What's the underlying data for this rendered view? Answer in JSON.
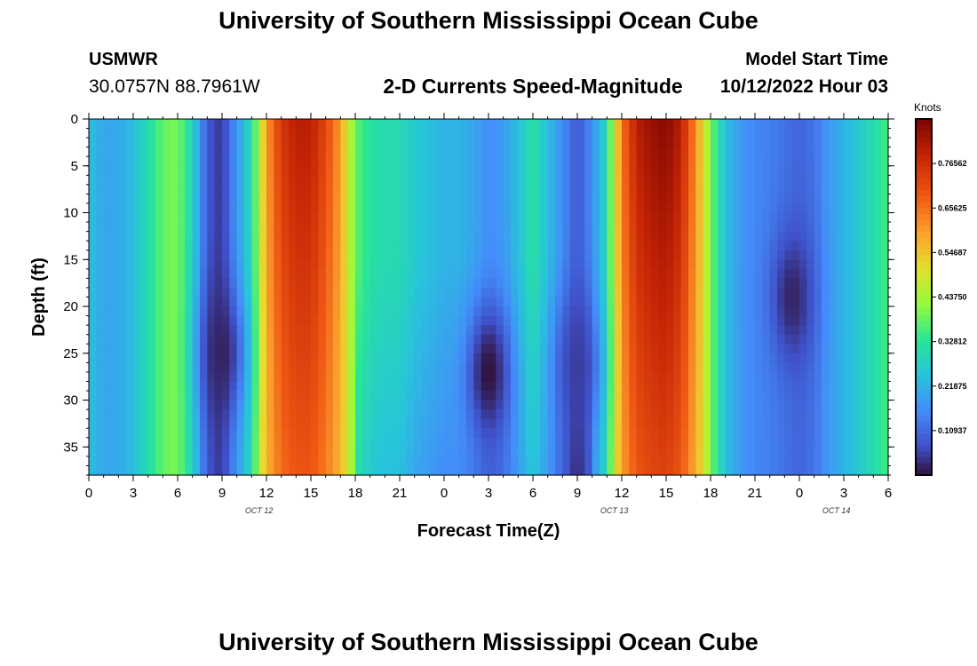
{
  "header": {
    "title": "University of Southern Mississippi Ocean Cube",
    "station_id": "USMWR",
    "station_coords": "30.0757N  88.7961W",
    "subtitle": "2-D Currents Speed-Magnitude",
    "model_start_label": "Model Start Time",
    "model_start_value": "10/12/2022 Hour 03"
  },
  "footer": {
    "repeated_title": "University of Southern Mississippi Ocean Cube"
  },
  "chart_data": {
    "type": "heatmap",
    "title": "2-D Currents Speed-Magnitude",
    "xlabel": "Forecast Time(Z)",
    "ylabel": "Depth (ft)",
    "x_tick_labels": [
      "0",
      "3",
      "6",
      "9",
      "12",
      "15",
      "18",
      "21",
      "0",
      "3",
      "6",
      "9",
      "12",
      "15",
      "18",
      "21",
      "0",
      "3",
      "6"
    ],
    "x_hours": [
      0,
      3,
      6,
      9,
      12,
      15,
      18,
      21,
      24,
      27,
      30,
      33,
      36,
      39,
      42,
      45,
      48,
      51,
      54
    ],
    "xlim": [
      0,
      54
    ],
    "y_ticks": [
      0,
      5,
      10,
      15,
      20,
      25,
      30,
      35
    ],
    "ylim": [
      0,
      38
    ],
    "y_inverted": true,
    "date_labels": [
      {
        "text": "OCT 12",
        "hour": 11.5
      },
      {
        "text": "OCT 13",
        "hour": 35.5
      },
      {
        "text": "OCT 14",
        "hour": 50.5
      }
    ],
    "colorbar": {
      "label": "Knots",
      "min": 0,
      "max": 0.875,
      "ticks": [
        0.10937,
        0.21875,
        0.32812,
        0.4375,
        0.54687,
        0.65625,
        0.76562
      ],
      "tick_labels": [
        "0.10937",
        "0.21875",
        "0.32812",
        "0.43750",
        "0.54687",
        "0.65625",
        "0.76562"
      ],
      "colormap": "turbo"
    },
    "time_profile_knots": [
      [
        0,
        0.24
      ],
      [
        1,
        0.2
      ],
      [
        2,
        0.2
      ],
      [
        3,
        0.24
      ],
      [
        4,
        0.3
      ],
      [
        5,
        0.38
      ],
      [
        6,
        0.4
      ],
      [
        7,
        0.28
      ],
      [
        8,
        0.08
      ],
      [
        9,
        0.04
      ],
      [
        10,
        0.18
      ],
      [
        11,
        0.3
      ],
      [
        12,
        0.6
      ],
      [
        13,
        0.75
      ],
      [
        14,
        0.8
      ],
      [
        15,
        0.8
      ],
      [
        16,
        0.72
      ],
      [
        17,
        0.6
      ],
      [
        18,
        0.38
      ],
      [
        19,
        0.32
      ],
      [
        20,
        0.3
      ],
      [
        21,
        0.3
      ],
      [
        22,
        0.26
      ],
      [
        23,
        0.24
      ],
      [
        24,
        0.22
      ],
      [
        25,
        0.22
      ],
      [
        26,
        0.2
      ],
      [
        27,
        0.16
      ],
      [
        28,
        0.18
      ],
      [
        29,
        0.24
      ],
      [
        30,
        0.32
      ],
      [
        31,
        0.24
      ],
      [
        32,
        0.16
      ],
      [
        33,
        0.08
      ],
      [
        34,
        0.16
      ],
      [
        35,
        0.3
      ],
      [
        36,
        0.65
      ],
      [
        37,
        0.8
      ],
      [
        38,
        0.84
      ],
      [
        39,
        0.86
      ],
      [
        40,
        0.8
      ],
      [
        41,
        0.62
      ],
      [
        42,
        0.4
      ],
      [
        43,
        0.24
      ],
      [
        44,
        0.18
      ],
      [
        45,
        0.15
      ],
      [
        46,
        0.14
      ],
      [
        47,
        0.12
      ],
      [
        48,
        0.1
      ],
      [
        49,
        0.12
      ],
      [
        50,
        0.18
      ],
      [
        51,
        0.22
      ],
      [
        52,
        0.26
      ],
      [
        53,
        0.3
      ],
      [
        54,
        0.36
      ]
    ],
    "minima": [
      {
        "hour": 9,
        "depth_ft": 25,
        "knots": 0.02
      },
      {
        "hour": 27,
        "depth_ft": 27,
        "knots": 0.0
      },
      {
        "hour": 33,
        "depth_ft": 26,
        "knots": 0.05
      },
      {
        "hour": 47.5,
        "depth_ft": 19,
        "knots": 0.02
      }
    ]
  }
}
